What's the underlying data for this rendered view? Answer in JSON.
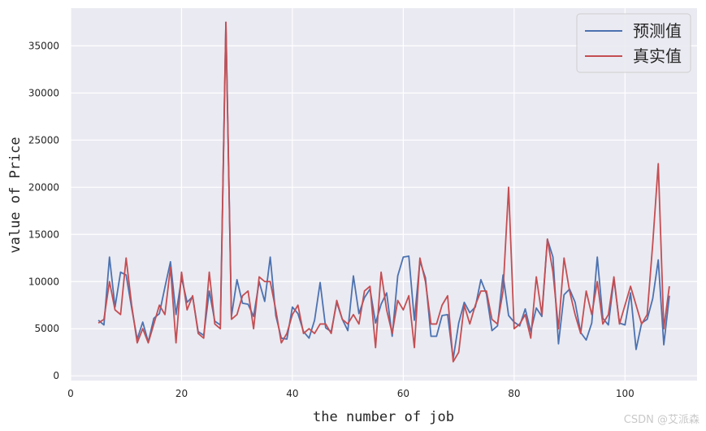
{
  "chart_data": {
    "type": "line",
    "title": "",
    "xlabel": "the number of job",
    "ylabel": "value of Price",
    "xlim": [
      0,
      113
    ],
    "ylim": [
      -500,
      39000
    ],
    "xticks": [
      0,
      20,
      40,
      60,
      80,
      100
    ],
    "yticks": [
      0,
      5000,
      10000,
      15000,
      20000,
      25000,
      30000,
      35000
    ],
    "grid": true,
    "background": "#eaeaf2",
    "legend_position": "top-right",
    "x": [
      5,
      6,
      7,
      8,
      9,
      10,
      11,
      12,
      13,
      14,
      15,
      16,
      17,
      18,
      19,
      20,
      21,
      22,
      23,
      24,
      25,
      26,
      27,
      28,
      29,
      30,
      31,
      32,
      33,
      34,
      35,
      36,
      37,
      38,
      39,
      40,
      41,
      42,
      43,
      44,
      45,
      46,
      47,
      48,
      49,
      50,
      51,
      52,
      53,
      54,
      55,
      56,
      57,
      58,
      59,
      60,
      61,
      62,
      63,
      64,
      65,
      66,
      67,
      68,
      69,
      70,
      71,
      72,
      73,
      74,
      75,
      76,
      77,
      78,
      79,
      80,
      81,
      82,
      83,
      84,
      85,
      86,
      87,
      88,
      89,
      90,
      91,
      92,
      93,
      94,
      95,
      96,
      97,
      98,
      99,
      100,
      101,
      102,
      103,
      104,
      105,
      106,
      107,
      108
    ],
    "series": [
      {
        "name": "预测值",
        "color": "#4c72b0",
        "values": [
          5900,
          5400,
          12600,
          7300,
          11000,
          10700,
          7200,
          3900,
          5700,
          3600,
          6100,
          6600,
          9400,
          12100,
          6500,
          10400,
          7800,
          8400,
          4700,
          4300,
          9000,
          5800,
          5400,
          37500,
          6300,
          10200,
          7700,
          7600,
          6300,
          10000,
          7900,
          12600,
          6400,
          4000,
          3900,
          7300,
          6600,
          4700,
          4000,
          5900,
          9900,
          5100,
          4700,
          7800,
          6000,
          4800,
          10600,
          6600,
          8300,
          9200,
          5600,
          7600,
          8800,
          4200,
          10600,
          12600,
          12700,
          5900,
          12200,
          10400,
          4200,
          4200,
          6400,
          6500,
          1800,
          5600,
          7800,
          6700,
          7300,
          10200,
          8700,
          4800,
          5300,
          10700,
          6400,
          5700,
          5300,
          7100,
          4700,
          7200,
          6300,
          14500,
          12600,
          3400,
          8600,
          9200,
          7800,
          4600,
          3800,
          5600,
          12600,
          6100,
          5400,
          10300,
          5600,
          5400,
          8800,
          2800,
          5600,
          6000,
          8200,
          12300,
          3300,
          8500
        ]
      },
      {
        "name": "真实值",
        "color": "#c44e52",
        "values": [
          5600,
          6000,
          10000,
          7000,
          6500,
          12500,
          7500,
          3500,
          5000,
          3500,
          5500,
          7500,
          6500,
          11500,
          3500,
          11000,
          7000,
          8500,
          4500,
          4000,
          11000,
          5500,
          5000,
          37500,
          6000,
          6500,
          8500,
          9000,
          5000,
          10500,
          10000,
          10000,
          7000,
          3500,
          4500,
          6500,
          7500,
          4500,
          5000,
          4500,
          5500,
          5500,
          4500,
          8000,
          6000,
          5500,
          6500,
          5500,
          9000,
          9500,
          3000,
          11000,
          7000,
          4500,
          8000,
          7000,
          8500,
          3000,
          12500,
          10000,
          5500,
          5500,
          7500,
          8500,
          1500,
          2500,
          7500,
          5500,
          7500,
          9000,
          9000,
          6000,
          5500,
          9000,
          20000,
          5000,
          5500,
          6500,
          4000,
          10500,
          6500,
          14500,
          11000,
          5000,
          12500,
          9000,
          6500,
          4500,
          9000,
          6500,
          10000,
          5500,
          6500,
          10500,
          5500,
          7500,
          9500,
          7500,
          5500,
          6500,
          14000,
          22500,
          5000,
          9500
        ]
      }
    ]
  },
  "watermark": "CSDN @艾派森"
}
